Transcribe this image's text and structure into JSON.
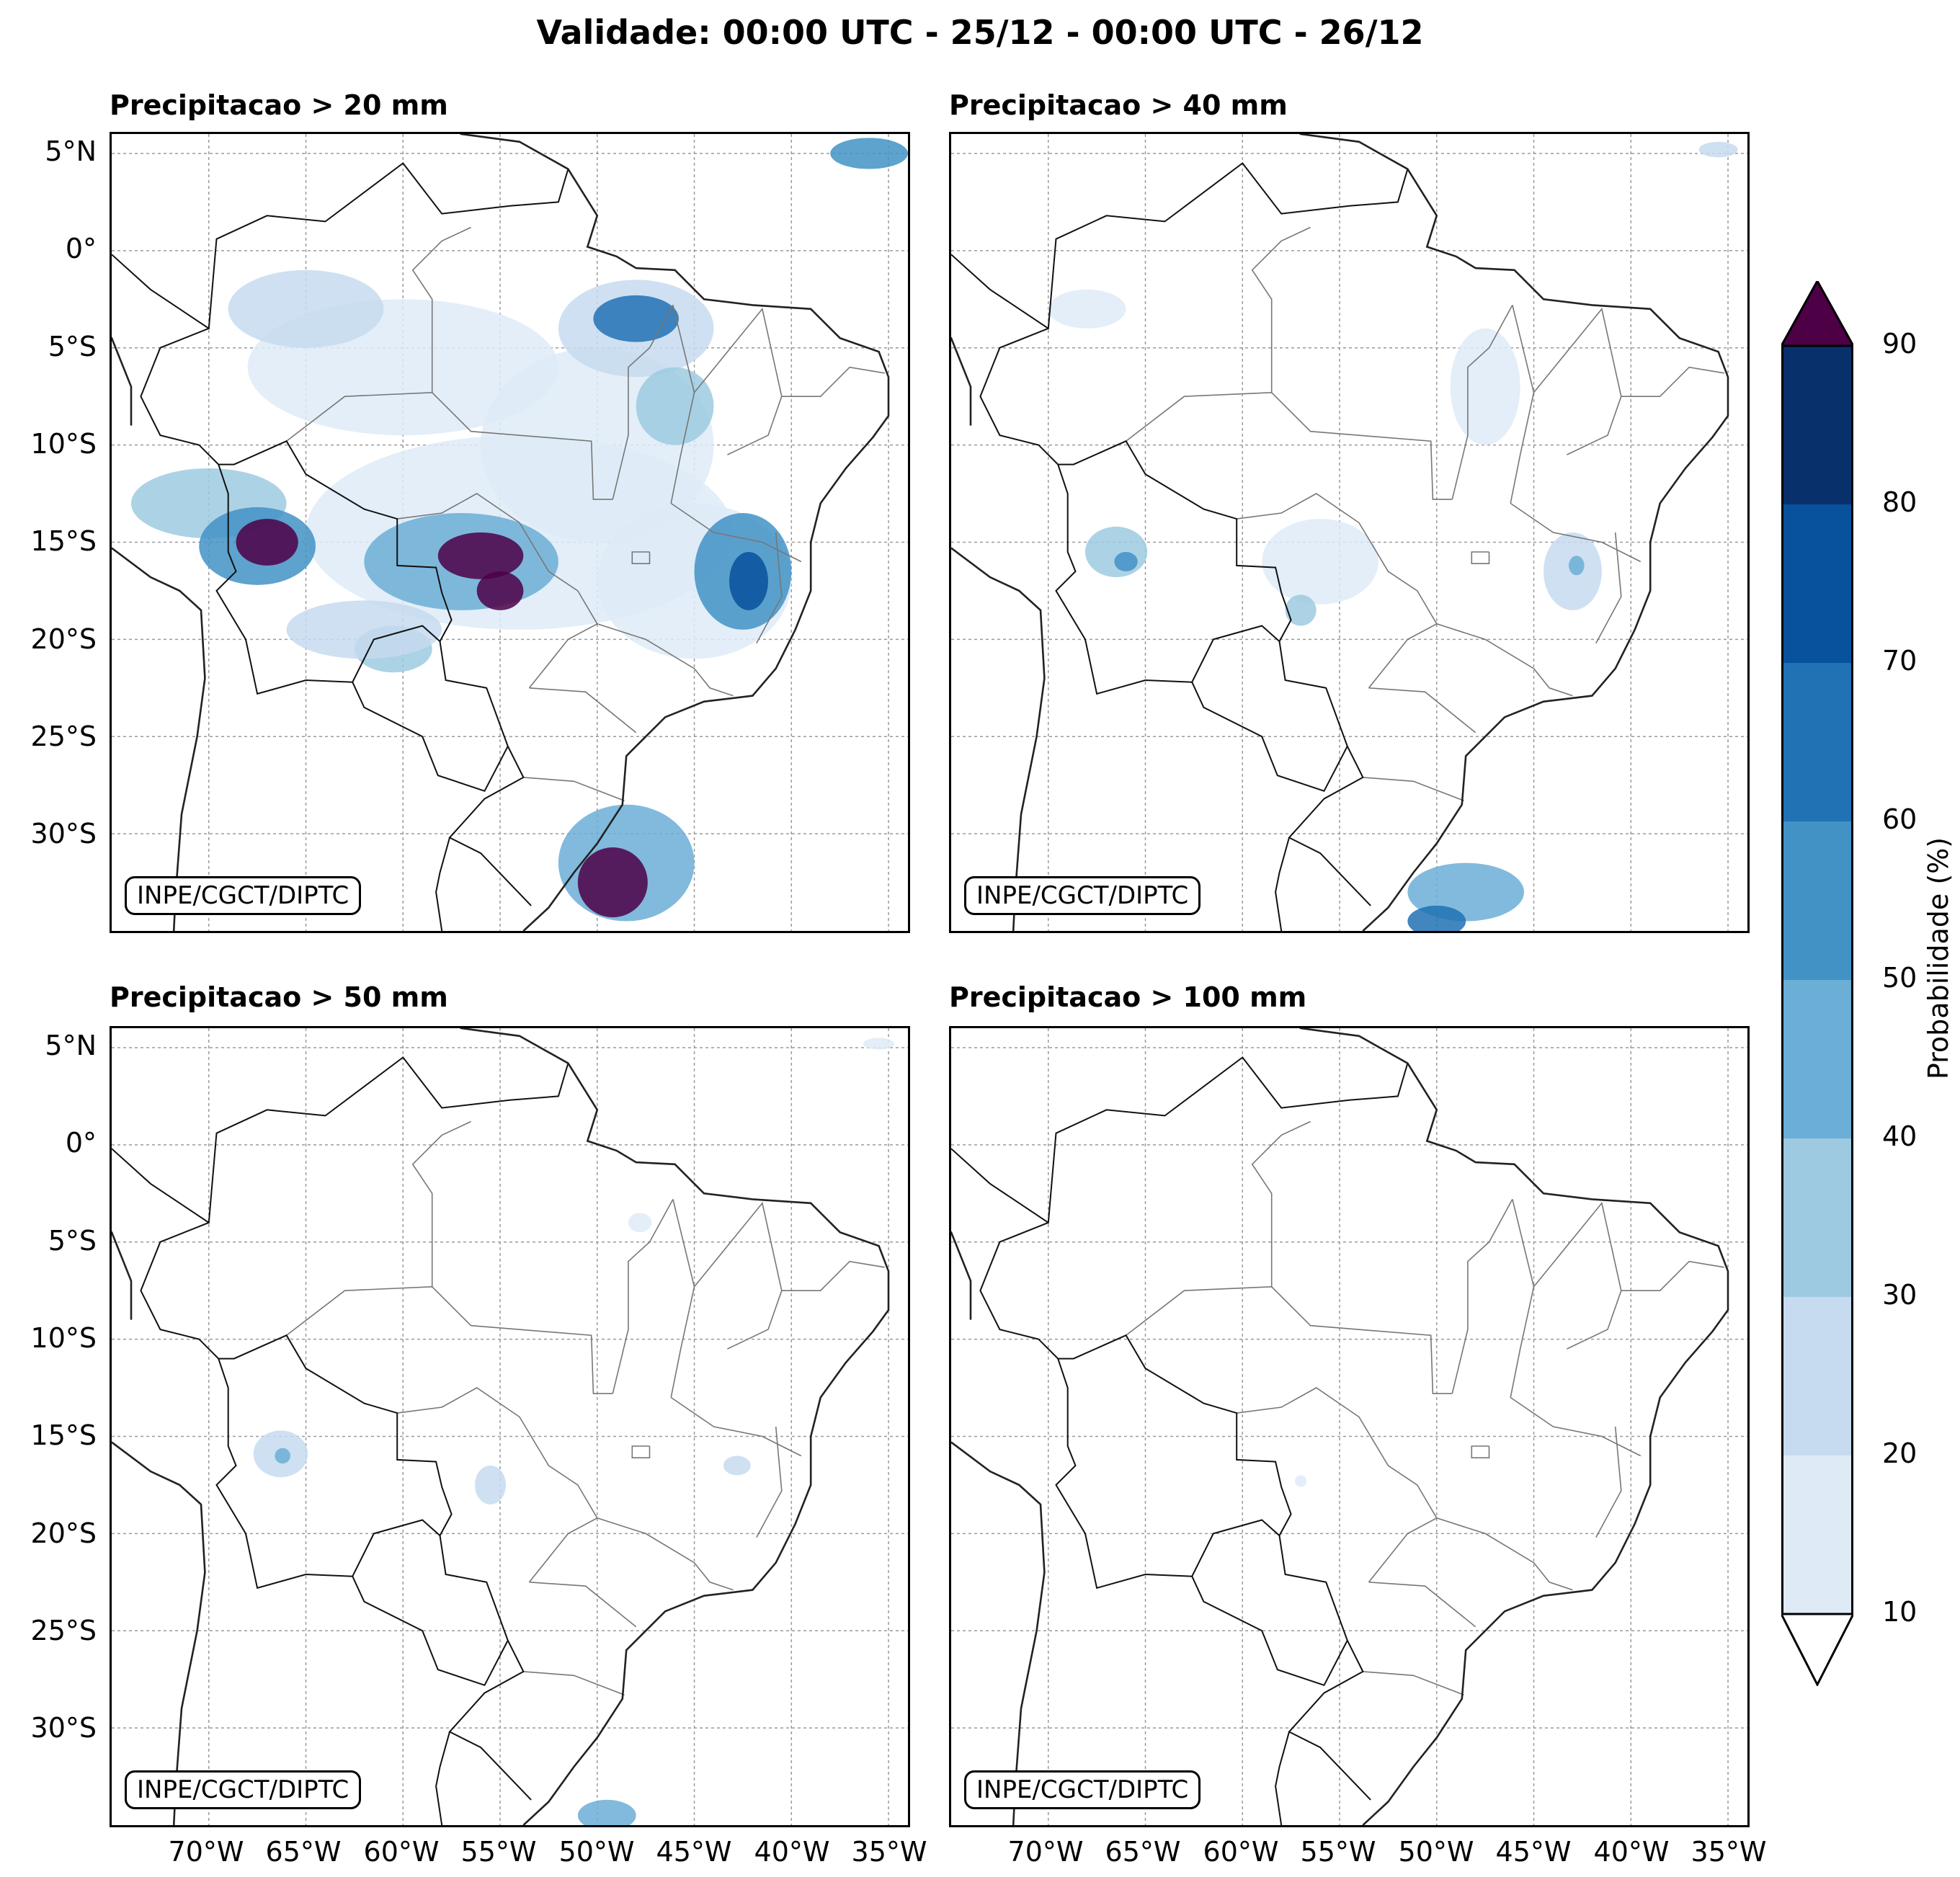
{
  "title": "Validade: 00:00 UTC - 25/12 - 00:00 UTC - 26/12",
  "credit": "INPE/CGCT/DIPTC",
  "panels": [
    {
      "title": "Precipitacao > 20 mm",
      "threshold_mm": 20
    },
    {
      "title": "Precipitacao > 40 mm",
      "threshold_mm": 40
    },
    {
      "title": "Precipitacao > 50 mm",
      "threshold_mm": 50
    },
    {
      "title": "Precipitacao > 100 mm",
      "threshold_mm": 100
    }
  ],
  "lat_ticks": [
    "5°N",
    "0°",
    "5°S",
    "10°S",
    "15°S",
    "20°S",
    "25°S",
    "30°S"
  ],
  "lon_ticks": [
    "70°W",
    "65°W",
    "60°W",
    "55°W",
    "50°W",
    "45°W",
    "40°W",
    "35°W"
  ],
  "colorbar": {
    "label": "Probabilidade (%)",
    "ticks": [
      "10",
      "20",
      "30",
      "40",
      "50",
      "60",
      "70",
      "80",
      "90"
    ],
    "colors": [
      "#deebf7",
      "#c6dbef",
      "#9ecae1",
      "#6baed6",
      "#4292c6",
      "#2171b5",
      "#08519c",
      "#08306b"
    ],
    "over_color": "#4d0046",
    "under_color": "#ffffff"
  },
  "map_extent": {
    "lon_min": -75,
    "lon_max": -34,
    "lat_min": -35,
    "lat_max": 6
  }
}
